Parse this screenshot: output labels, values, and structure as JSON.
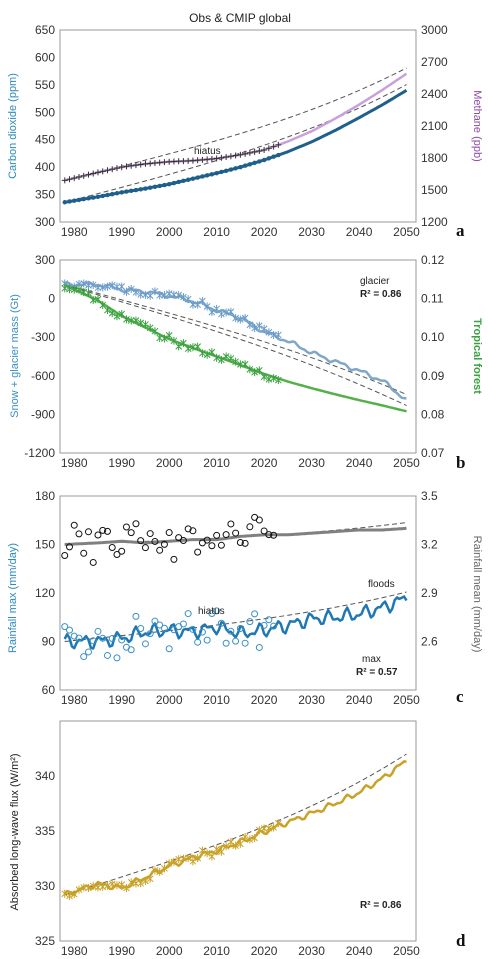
{
  "figure_title": "Obs & CMIP global",
  "colors": {
    "co2": "#1f5f8b",
    "co2_axis": "#2e8bc0",
    "methane": "#c9a0dc",
    "methane_axis": "#8e4aa8",
    "dashed": "#333333",
    "glacier": "#7fa7c9",
    "forest": "#55b04a",
    "rain_mean": "#808080",
    "rain_max": "#1f78b4",
    "flux": "#c9a227"
  },
  "chart_data": [
    {
      "type": "line",
      "panel_label": "a",
      "x": [
        1978,
        1985,
        1990,
        1995,
        2000,
        2005,
        2010,
        2015,
        2020,
        2025,
        2030,
        2035,
        2040,
        2045,
        2050
      ],
      "xlim": [
        1977,
        2052
      ],
      "x_ticks": [
        "1980",
        "1990",
        "2000",
        "2010",
        "2020",
        "2030",
        "2040",
        "2050"
      ],
      "ylabel": "Carbon dioxide (ppm)",
      "ylim": [
        300,
        650
      ],
      "y_ticks": [
        "300",
        "350",
        "400",
        "450",
        "500",
        "550",
        "600",
        "650"
      ],
      "y2label": "Methane (ppb)",
      "y2lim": [
        1200,
        3000
      ],
      "y2_ticks": [
        "1200",
        "1500",
        "1800",
        "2100",
        "2400",
        "2700",
        "3000"
      ],
      "series": [
        {
          "name": "Carbon dioxide",
          "axis": "left",
          "values": [
            336,
            346,
            354,
            361,
            369,
            379,
            389,
            400,
            413,
            428,
            446,
            467,
            490,
            514,
            540
          ]
        },
        {
          "name": "Methane",
          "axis": "right",
          "values": [
            1590,
            1665,
            1715,
            1745,
            1765,
            1775,
            1795,
            1830,
            1875,
            1955,
            2050,
            2170,
            2300,
            2440,
            2590
          ]
        }
      ],
      "annotations": [
        {
          "text": "hiatus"
        }
      ]
    },
    {
      "type": "line",
      "panel_label": "b",
      "x": [
        1978,
        1985,
        1990,
        1995,
        2000,
        2005,
        2010,
        2015,
        2020,
        2025,
        2030,
        2035,
        2040,
        2045,
        2050
      ],
      "xlim": [
        1977,
        2052
      ],
      "x_ticks": [
        "1980",
        "1990",
        "2000",
        "2010",
        "2020",
        "2030",
        "2040",
        "2050"
      ],
      "ylabel": "Snow + glacier mass (Gt)",
      "ylim": [
        -1200,
        300
      ],
      "y_ticks": [
        "-1200",
        "-900",
        "-600",
        "-300",
        "0",
        "300"
      ],
      "y2label": "Tropical forest",
      "y2lim": [
        0.07,
        0.12
      ],
      "y2_ticks": [
        "0.07",
        "0.08",
        "0.09",
        "0.10",
        "0.11",
        "0.12"
      ],
      "series": [
        {
          "name": "glacier",
          "axis": "left",
          "values": [
            110,
            110,
            70,
            55,
            20,
            -20,
            -90,
            -150,
            -260,
            -330,
            -420,
            -490,
            -560,
            -640,
            -790
          ]
        },
        {
          "name": "Tropical forest",
          "axis": "right",
          "values": [
            0.1135,
            0.1095,
            0.1055,
            0.1025,
            0.0995,
            0.0972,
            0.095,
            0.0928,
            0.0905,
            0.0885,
            0.0868,
            0.0852,
            0.0837,
            0.0823,
            0.0808
          ]
        }
      ],
      "annotations": [
        {
          "text": "glacier"
        },
        {
          "text": "R² = 0.86"
        }
      ]
    },
    {
      "type": "line",
      "panel_label": "c",
      "x": [
        1978,
        1985,
        1990,
        1995,
        2000,
        2005,
        2010,
        2015,
        2020,
        2025,
        2030,
        2035,
        2040,
        2045,
        2050
      ],
      "xlim": [
        1977,
        2052
      ],
      "x_ticks": [
        "1980",
        "1990",
        "2000",
        "2010",
        "2020",
        "2030",
        "2040",
        "2050"
      ],
      "ylabel": "Rainfall max (mm/day)",
      "ylim": [
        60,
        180
      ],
      "y_ticks": [
        "60",
        "90",
        "120",
        "150",
        "180"
      ],
      "y2label": "Rainfall mean (mm/day)",
      "y2lim": [
        2.3,
        3.5
      ],
      "y2_ticks": [
        "2.6",
        "2.9",
        "3.2",
        "3.5"
      ],
      "series": [
        {
          "name": "Rainfall mean",
          "axis": "right",
          "values": [
            3.2,
            3.21,
            3.22,
            3.21,
            3.22,
            3.23,
            3.23,
            3.25,
            3.26,
            3.26,
            3.27,
            3.28,
            3.29,
            3.29,
            3.3
          ]
        },
        {
          "name": "max",
          "axis": "left",
          "values": [
            90,
            90,
            92,
            96,
            97,
            96,
            99,
            95,
            97,
            100,
            104,
            105,
            107,
            111,
            117
          ]
        }
      ],
      "annotations": [
        {
          "text": "floods"
        },
        {
          "text": "hiatus"
        },
        {
          "text": "max"
        },
        {
          "text": "R² = 0.57"
        }
      ]
    },
    {
      "type": "line",
      "panel_label": "d",
      "x": [
        1978,
        1985,
        1990,
        1995,
        2000,
        2005,
        2010,
        2015,
        2020,
        2025,
        2030,
        2035,
        2040,
        2045,
        2050
      ],
      "xlim": [
        1977,
        2052
      ],
      "x_ticks": [
        "1980",
        "1990",
        "2000",
        "2010",
        "2020",
        "2030",
        "2040",
        "2050"
      ],
      "ylabel": "Absorbed long-wave flux (W/m²)",
      "ylim": [
        325,
        345
      ],
      "y_ticks": [
        "325",
        "330",
        "335",
        "340"
      ],
      "series": [
        {
          "name": "Absorbed long-wave flux",
          "axis": "left",
          "values": [
            329.2,
            330.2,
            329.8,
            330.8,
            331.8,
            332.6,
            333.2,
            334.0,
            334.9,
            335.8,
            336.6,
            337.5,
            338.5,
            339.8,
            341.4
          ]
        }
      ],
      "annotations": [
        {
          "text": "R² = 0.86"
        }
      ]
    }
  ]
}
